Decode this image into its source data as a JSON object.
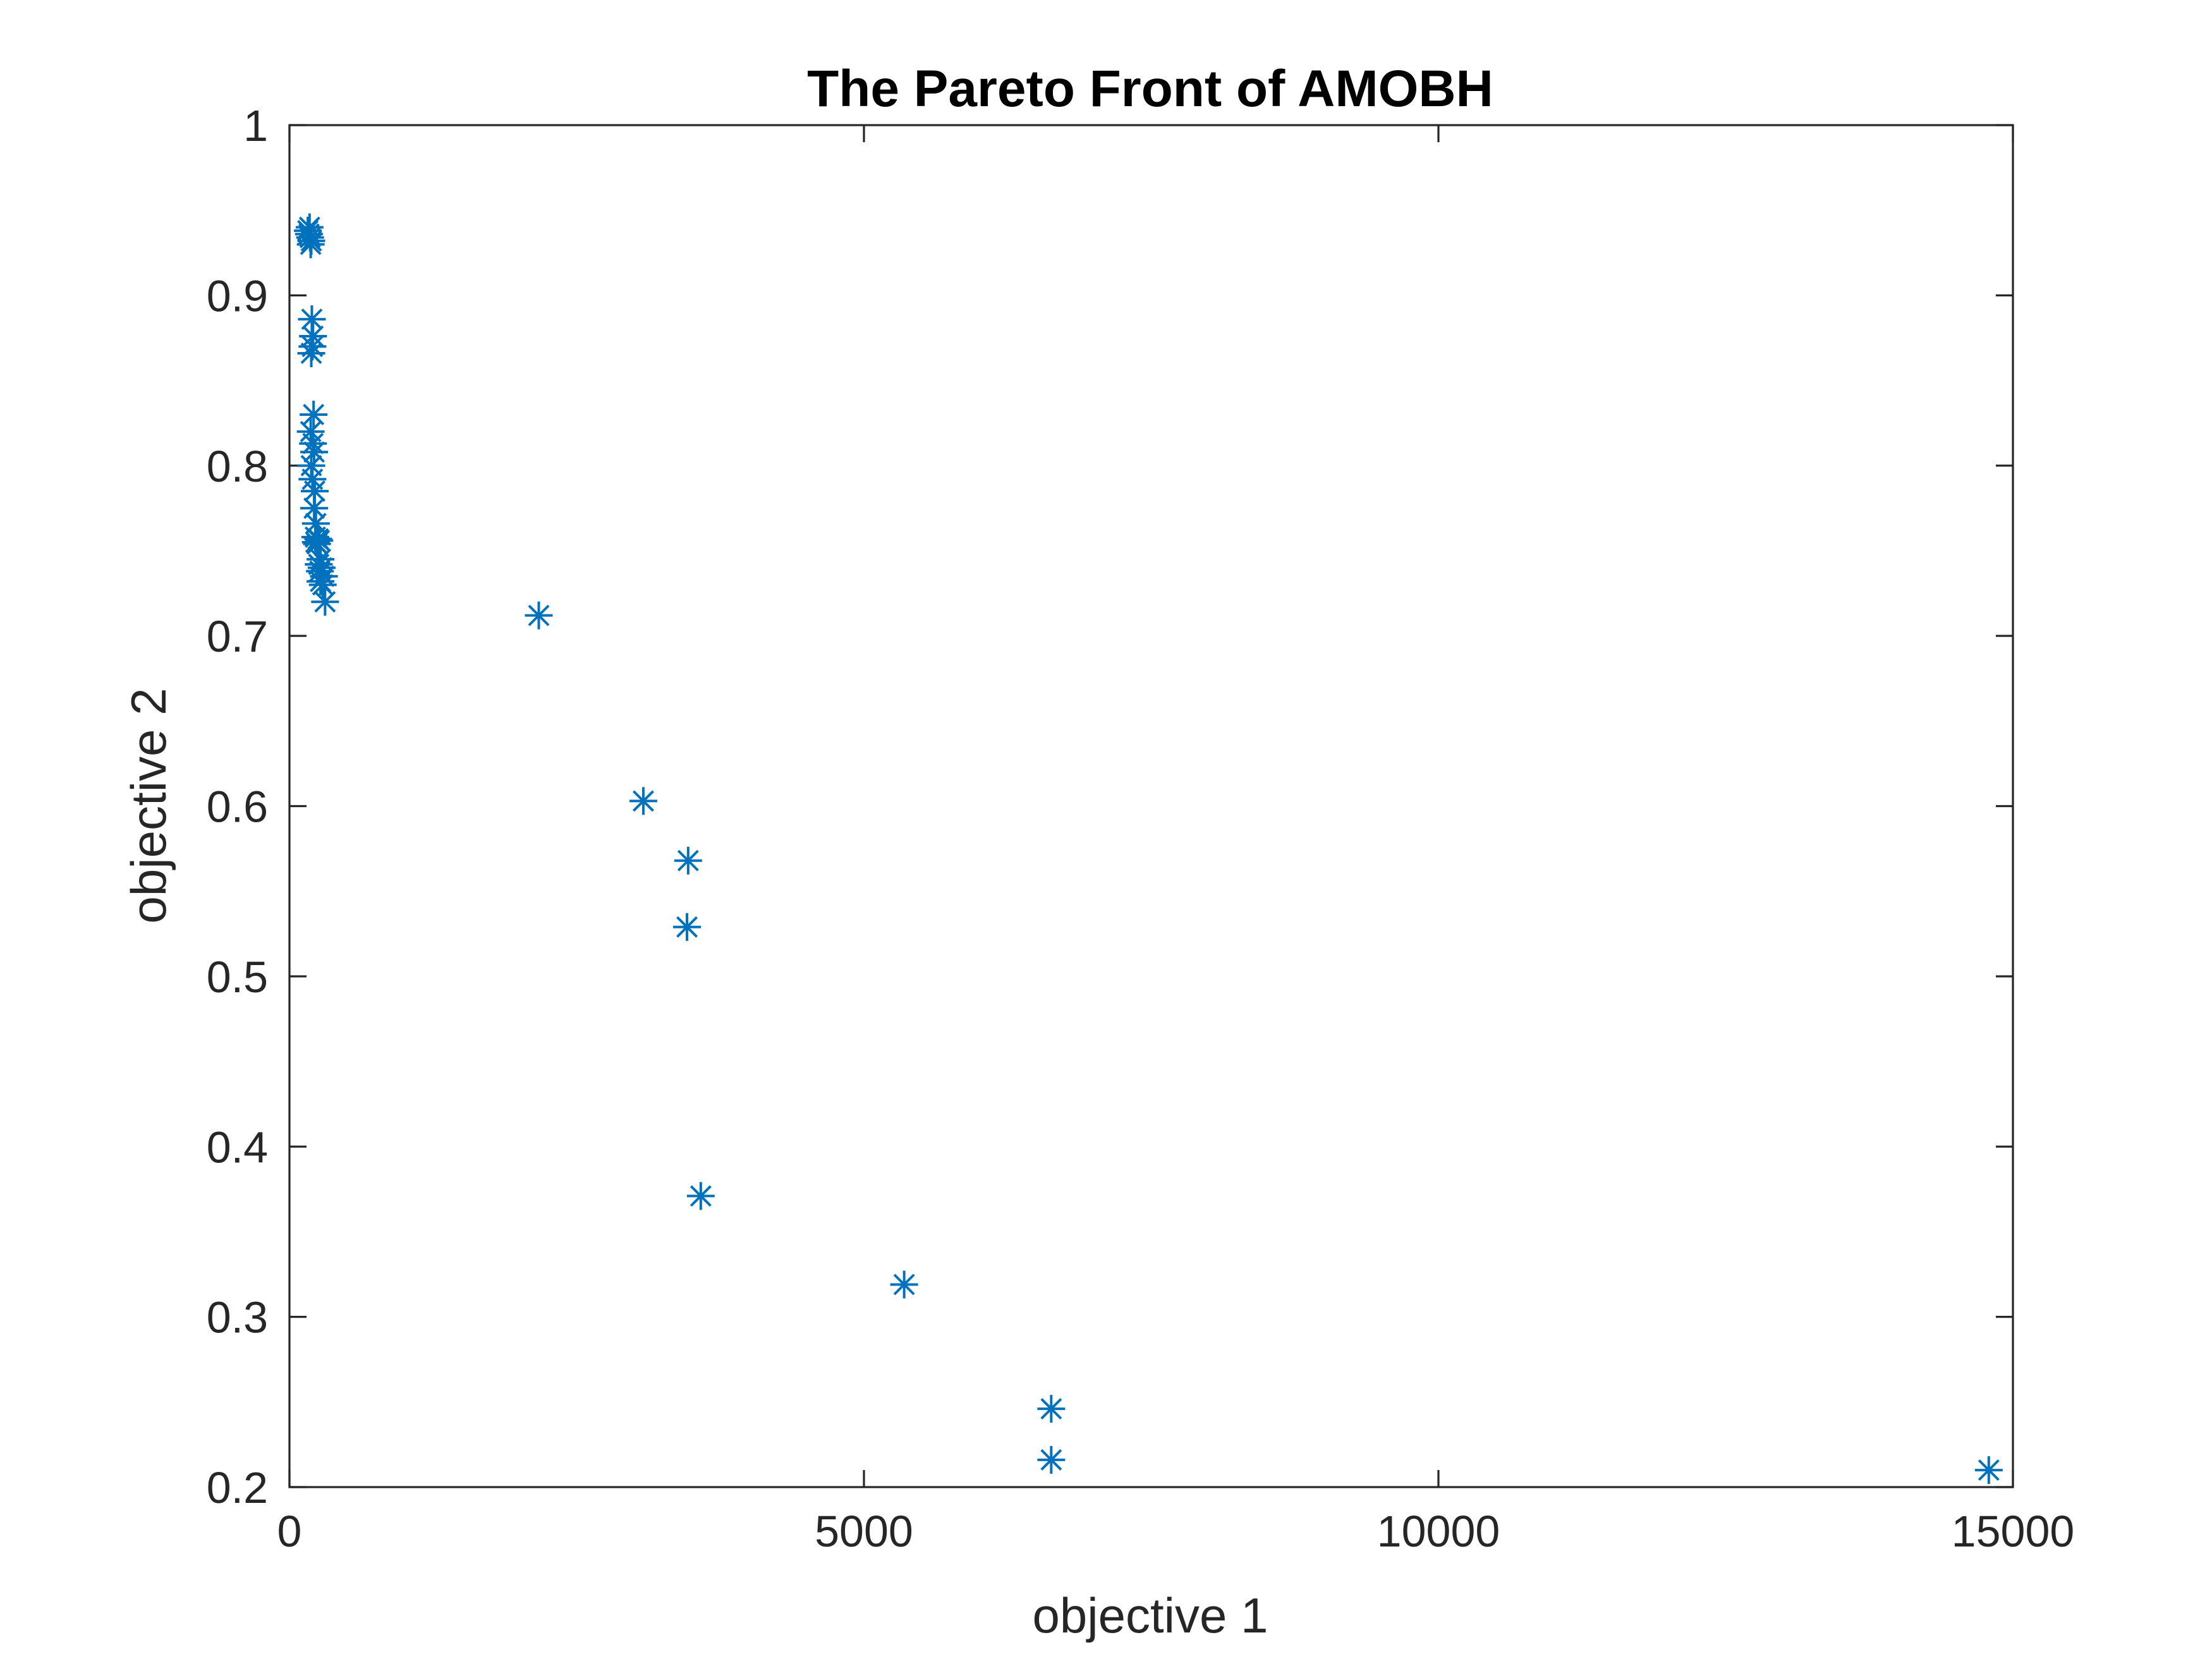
{
  "chart_data": {
    "type": "scatter",
    "title": "The Pareto Front of AMOBH",
    "xlabel": "objective 1",
    "ylabel": "objective 2",
    "xlim": [
      0,
      15000
    ],
    "ylim": [
      0.2,
      1
    ],
    "xticks": [
      "0",
      "5000",
      "10000",
      "15000"
    ],
    "yticks": [
      "0.2",
      "0.3",
      "0.4",
      "0.5",
      "0.6",
      "0.7",
      "0.8",
      "0.9",
      "1"
    ],
    "grid": false,
    "legend": "none",
    "marker": "asterisk",
    "marker_color": "#0072BD",
    "series": [
      {
        "x": [
          160,
          170,
          180,
          190,
          175,
          185,
          195,
          205,
          200,
          190,
          210,
          185,
          205,
          215,
          190,
          200,
          220,
          215,
          230,
          225,
          250,
          230,
          260,
          240,
          270,
          255,
          280,
          265,
          300,
          270,
          290,
          310,
          2170,
          3080,
          3470,
          3460,
          3580,
          5350,
          6630,
          6630,
          14790
        ],
        "y": [
          0.938,
          0.936,
          0.934,
          0.932,
          0.94,
          0.93,
          0.886,
          0.876,
          0.87,
          0.866,
          0.83,
          0.82,
          0.813,
          0.808,
          0.8,
          0.792,
          0.785,
          0.775,
          0.766,
          0.758,
          0.757,
          0.755,
          0.756,
          0.754,
          0.745,
          0.742,
          0.74,
          0.738,
          0.735,
          0.732,
          0.73,
          0.72,
          0.712,
          0.603,
          0.568,
          0.529,
          0.371,
          0.319,
          0.246,
          0.216,
          0.21
        ]
      }
    ]
  }
}
